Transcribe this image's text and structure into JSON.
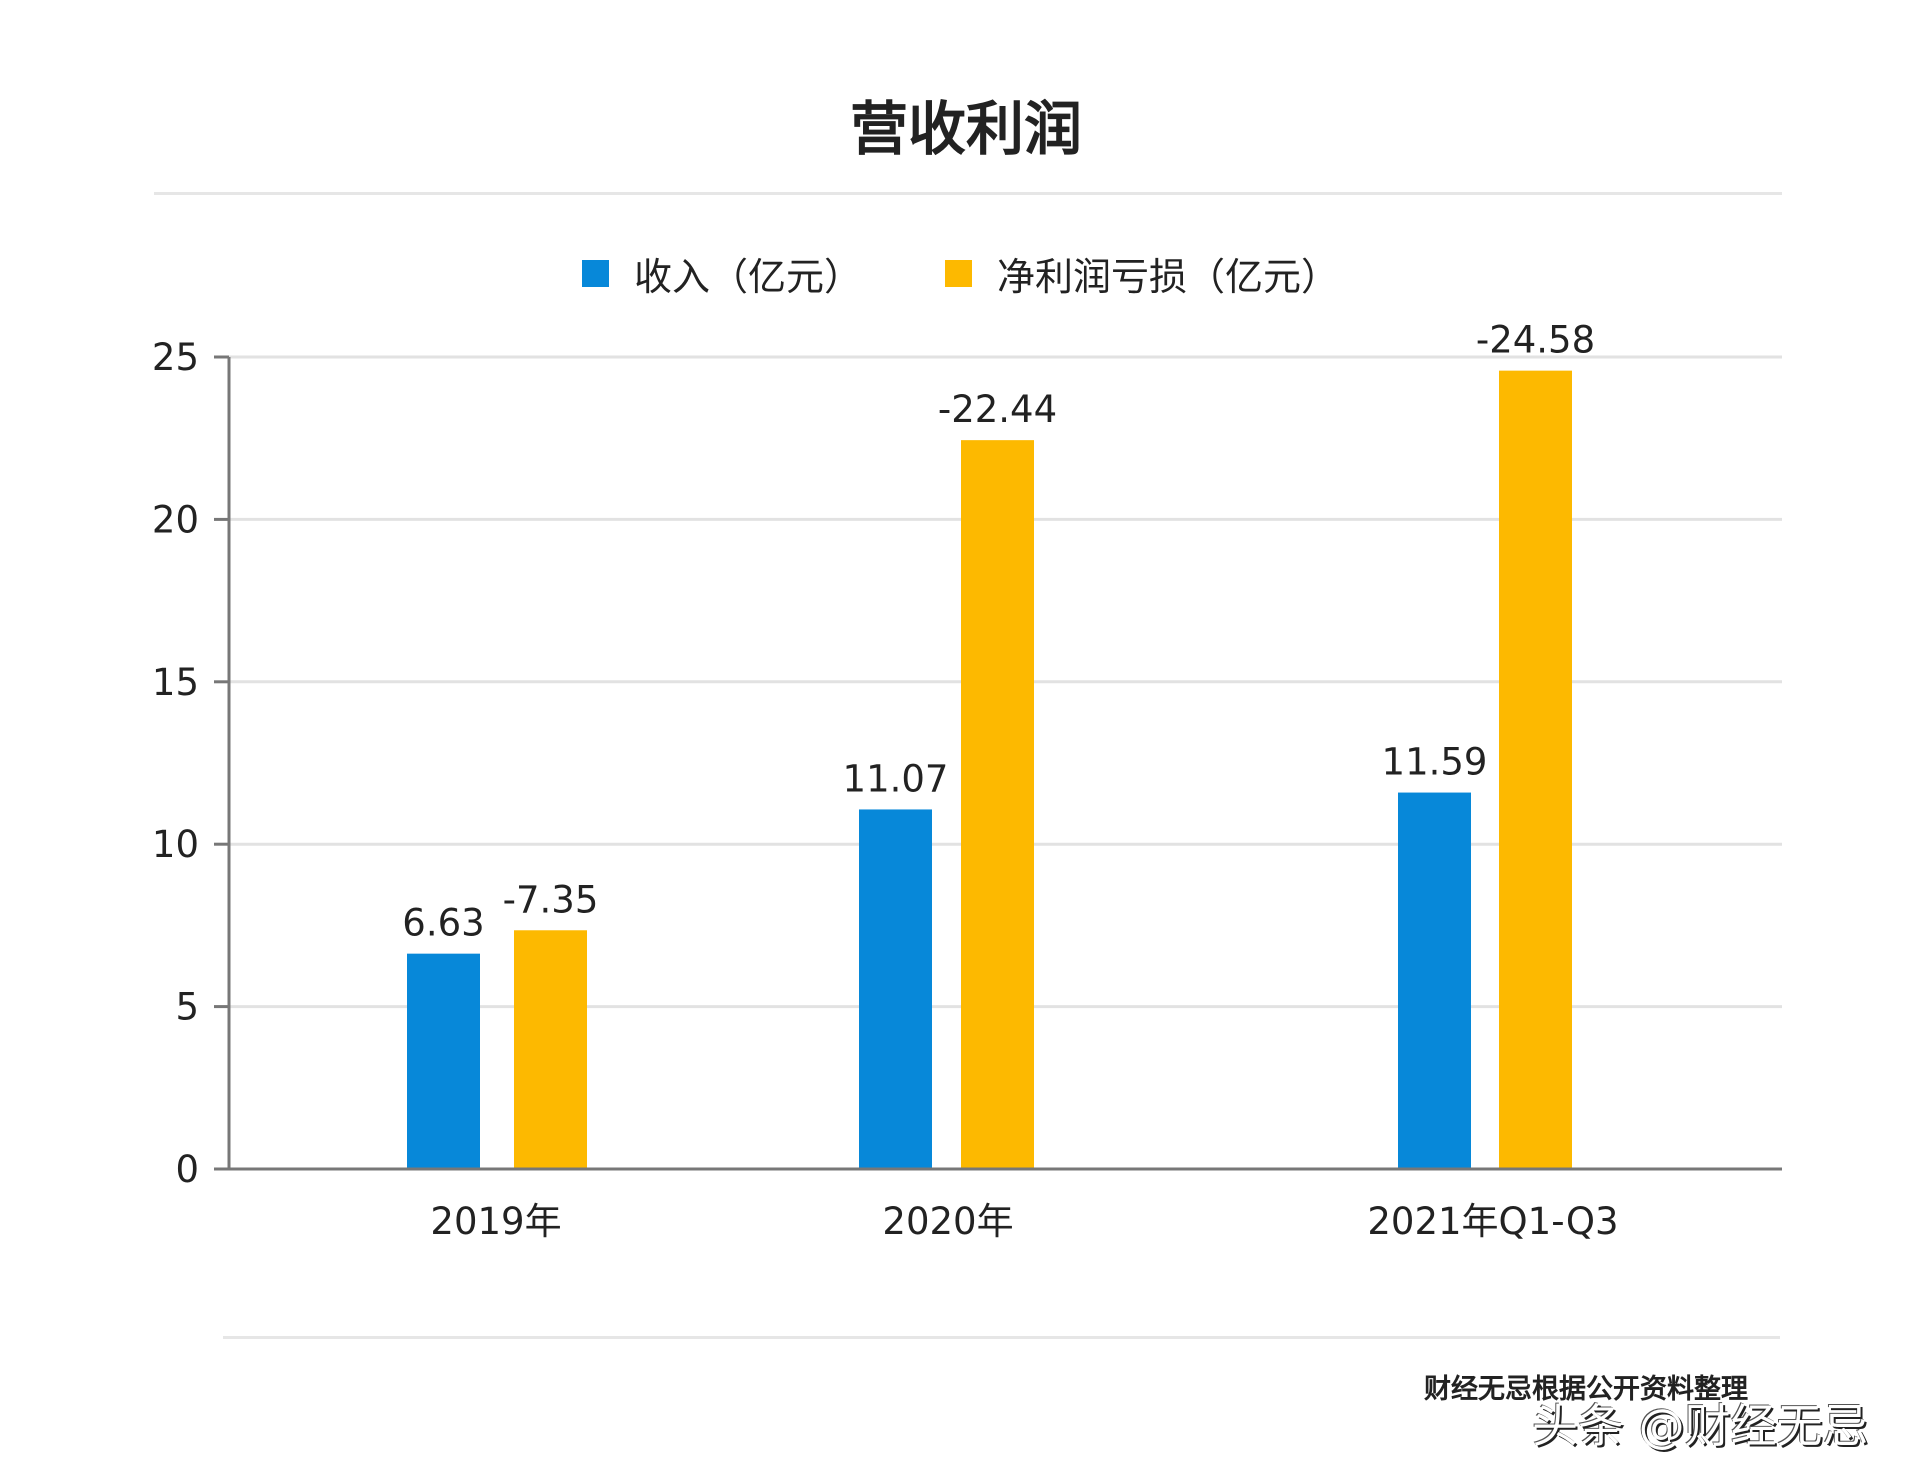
{
  "title": "营收利润",
  "source": "财经无忌根据公开资料整理",
  "watermark": "头条 @财经无忌",
  "chart_data": {
    "type": "bar",
    "title": "营收利润",
    "categories": [
      "2019年",
      "2020年",
      "2021年Q1-Q3"
    ],
    "series": [
      {
        "name": "收入（亿元）",
        "color": "#0788D9",
        "values": [
          6.63,
          11.07,
          11.59
        ],
        "labels": [
          "6.63",
          "11.07",
          "11.59"
        ]
      },
      {
        "name": "净利润亏损（亿元）",
        "color": "#FDB900",
        "values": [
          7.35,
          22.44,
          24.58
        ],
        "labels": [
          "-7.35",
          "-22.44",
          "-24.58"
        ]
      }
    ],
    "ylim": [
      0,
      25
    ],
    "yticks": [
      "0",
      "5",
      "10",
      "15",
      "20",
      "25"
    ],
    "grid": true,
    "legend": "top-center",
    "xlabel": "",
    "ylabel": ""
  }
}
